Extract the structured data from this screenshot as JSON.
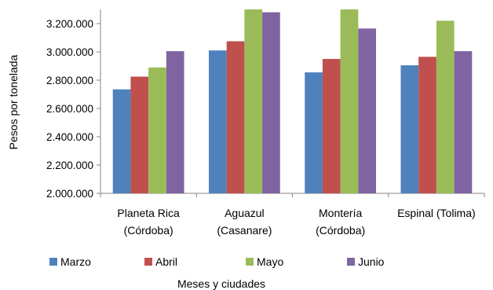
{
  "chart_data": {
    "type": "bar",
    "categories": [
      [
        "Planeta Rica",
        "(Córdoba)"
      ],
      [
        "Aguazul",
        "(Casanare)"
      ],
      [
        "Montería",
        "(Córdoba)"
      ],
      [
        "Espinal (Tolima)"
      ]
    ],
    "series": [
      {
        "name": "Marzo",
        "color": "#4F81BD",
        "values": [
          2735000,
          3010000,
          2855000,
          2905000
        ]
      },
      {
        "name": "Abril",
        "color": "#C0504D",
        "values": [
          2825000,
          3075000,
          2950000,
          2965000
        ]
      },
      {
        "name": "Mayo",
        "color": "#9BBB59",
        "values": [
          2890000,
          3300000,
          3300000,
          3220000
        ]
      },
      {
        "name": "Junio",
        "color": "#8064A2",
        "values": [
          3005000,
          3280000,
          3165000,
          3005000
        ]
      }
    ],
    "ylim": [
      2000000,
      3300000
    ],
    "yticks": [
      2000000,
      2200000,
      2400000,
      2600000,
      2800000,
      3000000,
      3200000
    ],
    "ytick_labels": [
      "2.000.000",
      "2.200.000",
      "2.400.000",
      "2.600.000",
      "2.800.000",
      "3.000.000",
      "3.200.000"
    ],
    "ylabel": "Pesos por tonelada",
    "xlabel": "Meses y ciudades",
    "legend_position": "bottom",
    "grid": false
  }
}
